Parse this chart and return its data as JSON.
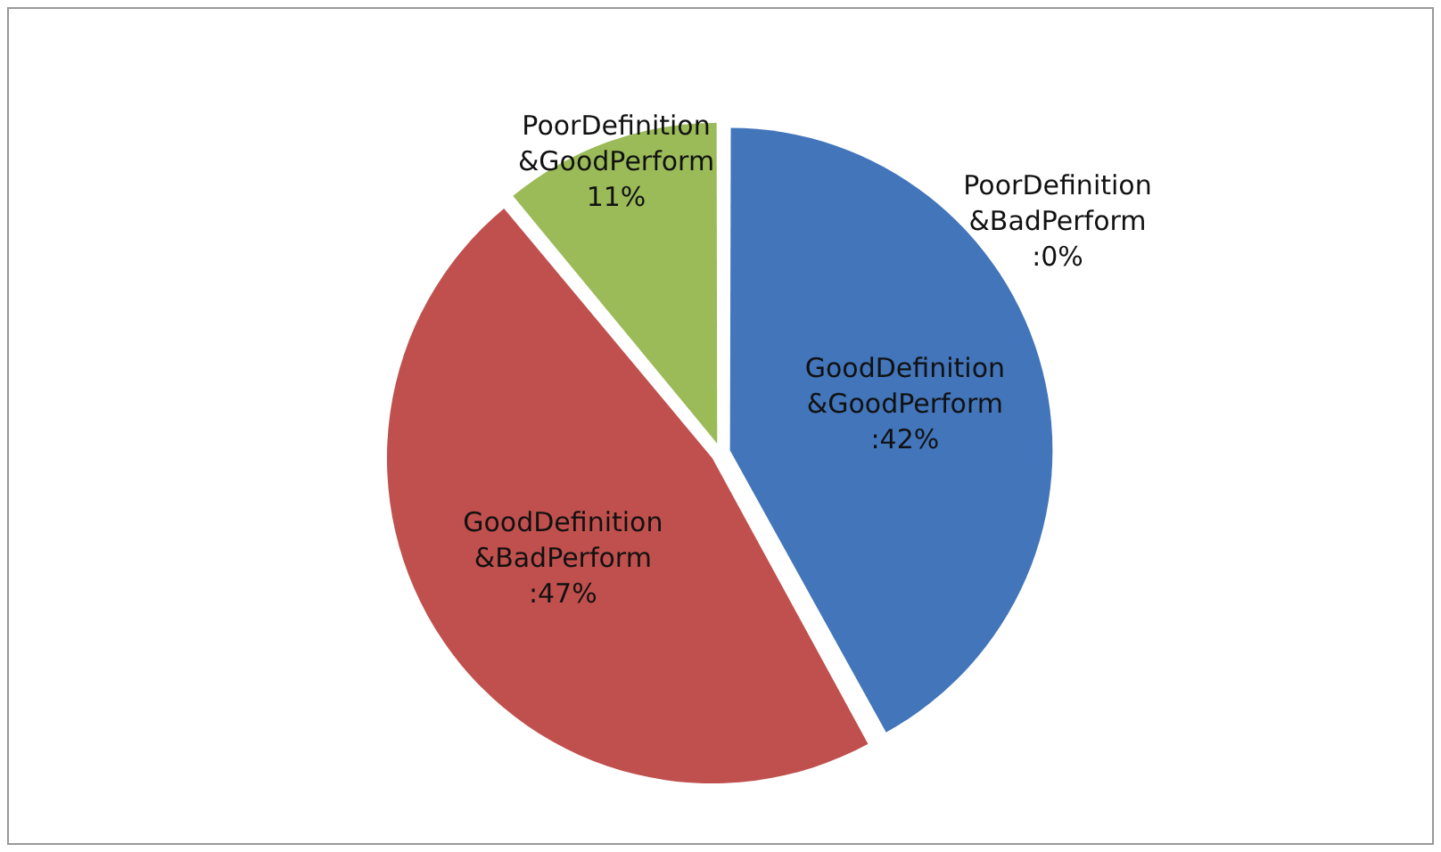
{
  "chart_data": {
    "type": "pie",
    "categories": [
      "GoodDefinition &GoodPerform",
      "GoodDefinition &BadPerform",
      "PoorDefinition &GoodPerform",
      "PoorDefinition &BadPerform"
    ],
    "values": [
      42,
      47,
      11,
      0
    ],
    "value_labels": [
      ":42%",
      ":47%",
      "11%",
      ":0%"
    ],
    "colors": [
      "#4275ba",
      "#c0504d",
      "#9bbb59",
      "#8064a2"
    ],
    "legend": false
  }
}
